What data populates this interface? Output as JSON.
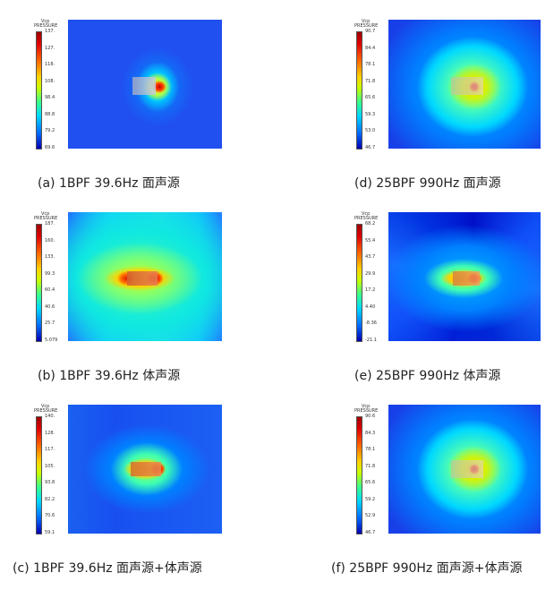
{
  "panels": [
    {
      "id": "a",
      "legend_title_1": "Vcp",
      "legend_title_2": "PRESSURE",
      "ticks": [
        "137.",
        "127.",
        "118.",
        "108.",
        "98.4",
        "88.8",
        "79.2",
        "69.6"
      ],
      "caption": "(a) 1BPF 39.6Hz 面声源"
    },
    {
      "id": "d",
      "legend_title_1": "Vcp",
      "legend_title_2": "PRESSURE",
      "ticks": [
        "90.7",
        "84.4",
        "78.1",
        "71.8",
        "65.6",
        "59.3",
        "53.0",
        "46.7"
      ],
      "caption": "(d) 25BPF 990Hz 面声源"
    },
    {
      "id": "b",
      "legend_title_1": "Vcp",
      "legend_title_2": "PRESSURE",
      "ticks": [
        "187.",
        "160.",
        "133.",
        "99.3",
        "60.4",
        "40.6",
        "25.7",
        "5.079"
      ],
      "caption": "(b) 1BPF 39.6Hz 体声源"
    },
    {
      "id": "e",
      "legend_title_1": "Vcp",
      "legend_title_2": "PRESSURE",
      "ticks": [
        "68.2",
        "55.4",
        "43.7",
        "29.9",
        "17.2",
        "4.40",
        "-8.36",
        "-21.1"
      ],
      "caption": "(e) 25BPF 990Hz 体声源"
    },
    {
      "id": "c",
      "legend_title_1": "Vcp",
      "legend_title_2": "PRESSURE",
      "ticks": [
        "140.",
        "128.",
        "117.",
        "105.",
        "93.8",
        "82.2",
        "70.6",
        "59.1"
      ],
      "caption": "(c) 1BPF 39.6Hz 面声源+体声源"
    },
    {
      "id": "f",
      "legend_title_1": "Vcp",
      "legend_title_2": "PRESSURE",
      "ticks": [
        "90.6",
        "84.3",
        "78.1",
        "71.8",
        "65.6",
        "59.2",
        "52.9",
        "46.7"
      ],
      "caption": "(f) 25BPF 990Hz 面声源+体声源"
    }
  ]
}
